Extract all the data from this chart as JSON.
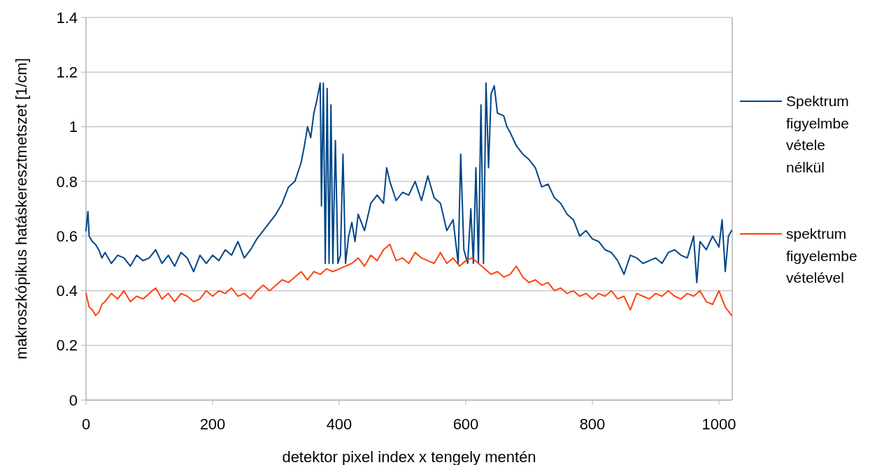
{
  "chart_data": {
    "type": "line",
    "xlabel": "detektor pixel index x tengely mentén",
    "ylabel": "makroszkópikus hatáskeresztmetszet [1/cm]",
    "xlim": [
      0,
      1021
    ],
    "xticks": [
      0,
      200,
      400,
      600,
      800,
      1000
    ],
    "ylim": [
      0,
      1.4
    ],
    "yticks": [
      0,
      0.2,
      0.4,
      0.6,
      0.8,
      1,
      1.2,
      1.4
    ],
    "grid": "y",
    "legend": "right",
    "marker": "none",
    "line_style": "solid",
    "series": [
      {
        "name": "Spektrum figyelmbe vétele nélkül",
        "color": "#004586",
        "x": [
          0,
          3,
          5,
          10,
          15,
          20,
          25,
          30,
          40,
          50,
          60,
          70,
          80,
          90,
          100,
          110,
          120,
          130,
          140,
          150,
          160,
          170,
          180,
          190,
          200,
          210,
          220,
          230,
          240,
          250,
          260,
          270,
          280,
          290,
          300,
          310,
          320,
          330,
          340,
          345,
          350,
          355,
          360,
          365,
          370,
          372,
          375,
          378,
          381,
          384,
          387,
          390,
          394,
          398,
          402,
          406,
          410,
          415,
          420,
          425,
          430,
          440,
          450,
          460,
          470,
          475,
          480,
          490,
          500,
          510,
          520,
          530,
          540,
          550,
          560,
          570,
          580,
          588,
          592,
          597,
          603,
          608,
          612,
          616,
          620,
          624,
          628,
          632,
          636,
          640,
          645,
          650,
          660,
          665,
          670,
          680,
          690,
          700,
          710,
          720,
          730,
          740,
          750,
          760,
          770,
          780,
          790,
          800,
          810,
          820,
          830,
          840,
          850,
          860,
          870,
          880,
          890,
          900,
          910,
          920,
          930,
          940,
          950,
          960,
          965,
          970,
          980,
          990,
          1000,
          1005,
          1010,
          1015,
          1020
        ],
        "values": [
          0.62,
          0.69,
          0.6,
          0.58,
          0.57,
          0.55,
          0.52,
          0.54,
          0.5,
          0.53,
          0.52,
          0.49,
          0.53,
          0.51,
          0.52,
          0.55,
          0.5,
          0.53,
          0.49,
          0.54,
          0.52,
          0.47,
          0.53,
          0.5,
          0.53,
          0.51,
          0.55,
          0.53,
          0.58,
          0.52,
          0.55,
          0.59,
          0.62,
          0.65,
          0.68,
          0.72,
          0.78,
          0.8,
          0.87,
          0.93,
          1.0,
          0.96,
          1.05,
          1.1,
          1.16,
          0.71,
          1.16,
          0.5,
          1.14,
          0.5,
          1.08,
          0.5,
          0.95,
          0.5,
          0.53,
          0.9,
          0.5,
          0.6,
          0.65,
          0.58,
          0.68,
          0.62,
          0.72,
          0.75,
          0.72,
          0.85,
          0.8,
          0.73,
          0.76,
          0.75,
          0.8,
          0.73,
          0.82,
          0.74,
          0.72,
          0.62,
          0.66,
          0.5,
          0.9,
          0.55,
          0.5,
          0.7,
          0.5,
          0.85,
          0.5,
          1.08,
          0.5,
          1.16,
          0.85,
          1.12,
          1.15,
          1.05,
          1.04,
          1.0,
          0.98,
          0.93,
          0.9,
          0.88,
          0.85,
          0.78,
          0.79,
          0.74,
          0.72,
          0.68,
          0.66,
          0.6,
          0.62,
          0.59,
          0.58,
          0.55,
          0.54,
          0.51,
          0.46,
          0.53,
          0.52,
          0.5,
          0.51,
          0.52,
          0.5,
          0.54,
          0.55,
          0.53,
          0.52,
          0.6,
          0.43,
          0.58,
          0.55,
          0.6,
          0.56,
          0.66,
          0.47,
          0.6,
          0.62
        ]
      },
      {
        "name": "spektrum figyelembe vételével",
        "color": "#ff420e",
        "x": [
          0,
          5,
          10,
          15,
          20,
          25,
          30,
          40,
          50,
          60,
          70,
          80,
          90,
          100,
          110,
          120,
          130,
          140,
          150,
          160,
          170,
          180,
          190,
          200,
          210,
          220,
          230,
          240,
          250,
          260,
          270,
          280,
          290,
          300,
          310,
          320,
          330,
          340,
          350,
          360,
          370,
          380,
          390,
          400,
          410,
          420,
          430,
          440,
          450,
          460,
          470,
          480,
          490,
          500,
          510,
          520,
          530,
          540,
          550,
          560,
          570,
          580,
          590,
          600,
          610,
          620,
          630,
          640,
          650,
          660,
          670,
          680,
          690,
          700,
          710,
          720,
          730,
          740,
          750,
          760,
          770,
          780,
          790,
          800,
          810,
          820,
          830,
          840,
          850,
          860,
          870,
          880,
          890,
          900,
          910,
          920,
          930,
          940,
          950,
          960,
          970,
          980,
          990,
          1000,
          1010,
          1020
        ],
        "values": [
          0.39,
          0.34,
          0.33,
          0.31,
          0.32,
          0.35,
          0.36,
          0.39,
          0.37,
          0.4,
          0.36,
          0.38,
          0.37,
          0.39,
          0.41,
          0.37,
          0.39,
          0.36,
          0.39,
          0.38,
          0.36,
          0.37,
          0.4,
          0.38,
          0.4,
          0.39,
          0.41,
          0.38,
          0.39,
          0.37,
          0.4,
          0.42,
          0.4,
          0.42,
          0.44,
          0.43,
          0.45,
          0.47,
          0.44,
          0.47,
          0.46,
          0.48,
          0.47,
          0.48,
          0.49,
          0.5,
          0.52,
          0.49,
          0.53,
          0.51,
          0.55,
          0.57,
          0.51,
          0.52,
          0.5,
          0.54,
          0.52,
          0.51,
          0.5,
          0.54,
          0.5,
          0.52,
          0.49,
          0.51,
          0.52,
          0.5,
          0.48,
          0.46,
          0.47,
          0.45,
          0.46,
          0.49,
          0.45,
          0.43,
          0.44,
          0.42,
          0.43,
          0.4,
          0.41,
          0.39,
          0.4,
          0.38,
          0.39,
          0.37,
          0.39,
          0.38,
          0.4,
          0.37,
          0.38,
          0.33,
          0.39,
          0.38,
          0.37,
          0.39,
          0.38,
          0.4,
          0.38,
          0.37,
          0.39,
          0.38,
          0.4,
          0.36,
          0.35,
          0.4,
          0.34,
          0.31
        ]
      }
    ]
  }
}
